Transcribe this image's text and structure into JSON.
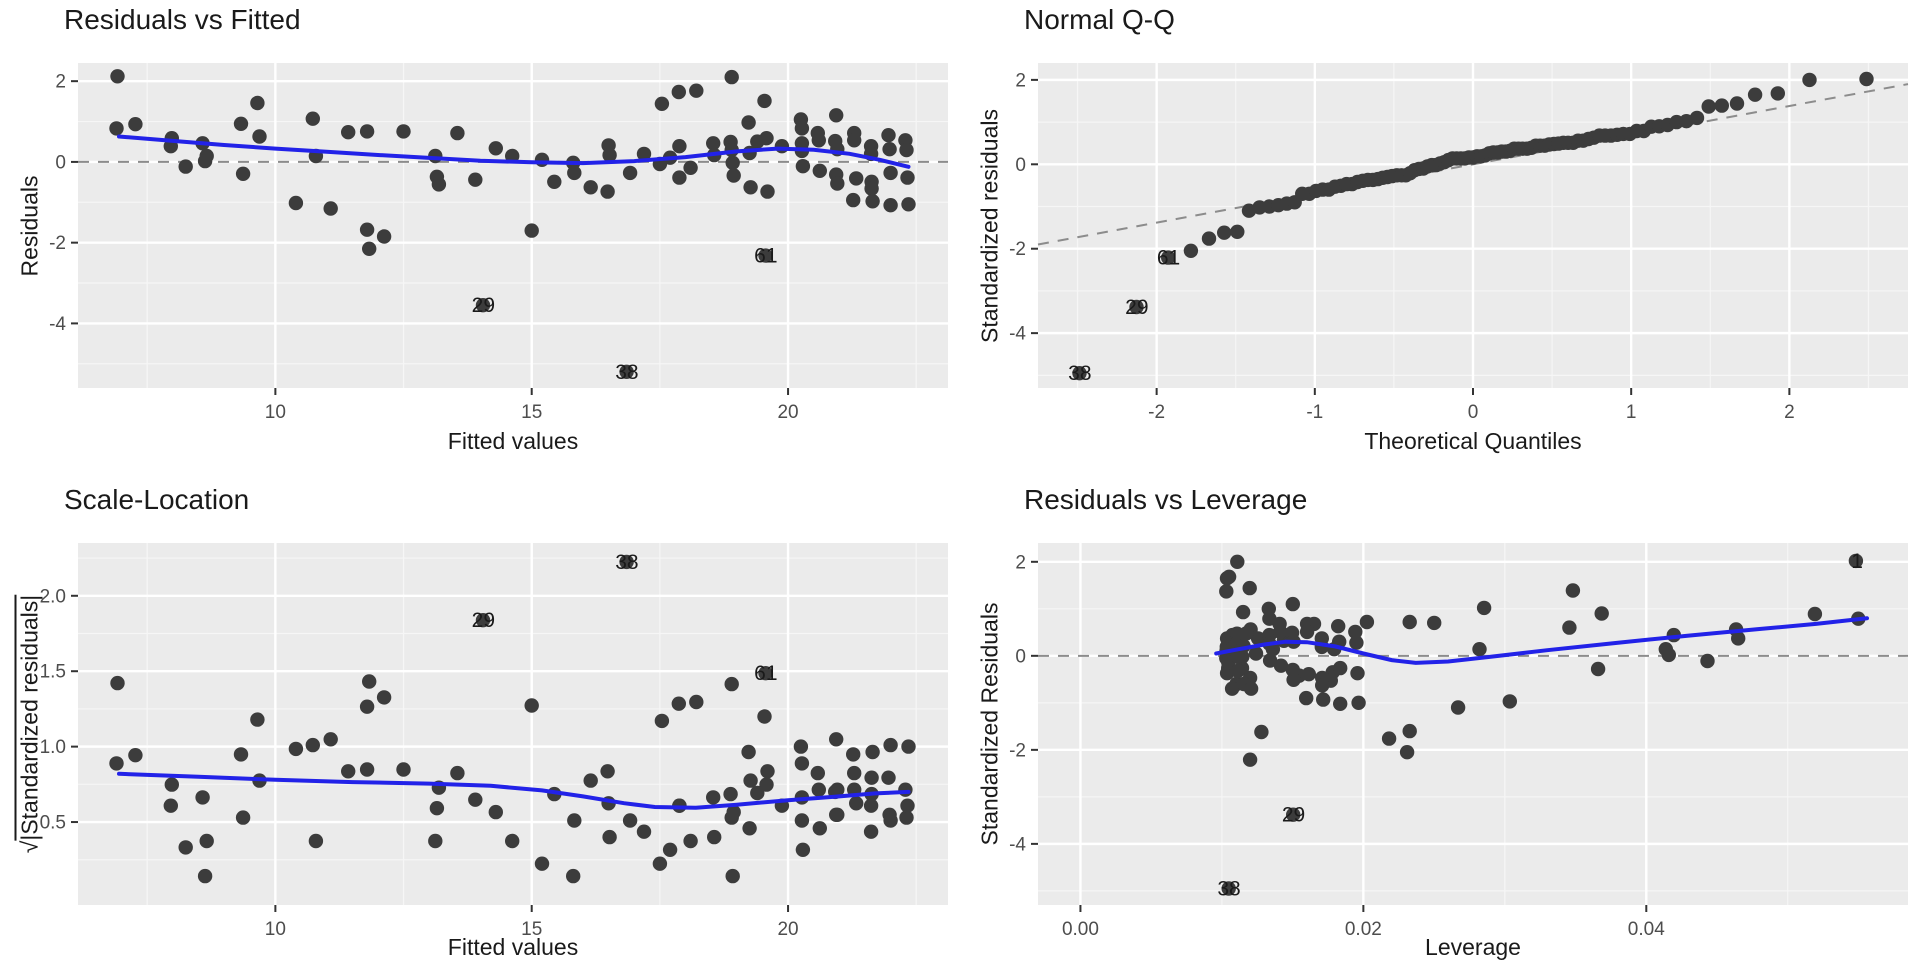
{
  "colors": {
    "panel_bg": "#EBEBEB",
    "grid_major": "#FFFFFF",
    "grid_minor": "#F6F6F6",
    "point": "#3C3C3C",
    "smooth_line": "#2222E8",
    "dashed_line": "#8C8C8C",
    "tick_text": "#4D4D4D",
    "tick_mark": "#333333",
    "text": "#1A1A1A"
  },
  "chart_data": {
    "type": "scatter",
    "figure_kind": "linear-model-diagnostics-2x2",
    "model": {
      "sigma": 1.05,
      "fitted_mean": 17.5,
      "sxx": 2515,
      "observations": [
        [
          6.92,
          2.02,
          "1"
        ],
        [
          6.9,
          0.79
        ],
        [
          7.27,
          0.89
        ],
        [
          7.98,
          0.56
        ],
        [
          7.96,
          0.37
        ],
        [
          8.25,
          -0.11
        ],
        [
          8.58,
          0.44
        ],
        [
          8.66,
          0.14
        ],
        [
          8.63,
          0.02
        ],
        [
          9.33,
          0.9
        ],
        [
          9.37,
          -0.28
        ],
        [
          9.65,
          1.39
        ],
        [
          9.69,
          0.6
        ],
        [
          10.4,
          -0.97
        ],
        [
          10.73,
          1.02
        ],
        [
          10.79,
          0.14
        ],
        [
          11.08,
          -1.1
        ],
        [
          11.42,
          0.7
        ],
        [
          11.79,
          -1.6
        ],
        [
          11.83,
          -2.05
        ],
        [
          12.12,
          -1.76
        ],
        [
          11.79,
          0.72
        ],
        [
          12.5,
          0.72
        ],
        [
          13.12,
          0.14
        ],
        [
          13.15,
          -0.35
        ],
        [
          13.19,
          -0.53
        ],
        [
          13.55,
          0.68
        ],
        [
          13.9,
          -0.42
        ],
        [
          14.05,
          -3.38,
          "29"
        ],
        [
          14.3,
          0.32
        ],
        [
          14.62,
          0.14
        ],
        [
          15.0,
          -1.62
        ],
        [
          15.2,
          0.05
        ],
        [
          15.44,
          -0.47
        ],
        [
          15.81,
          -0.02
        ],
        [
          15.83,
          -0.26
        ],
        [
          16.15,
          -0.6
        ],
        [
          16.85,
          -4.95,
          "38"
        ],
        [
          16.48,
          -0.7
        ],
        [
          16.5,
          0.39
        ],
        [
          16.52,
          0.16
        ],
        [
          16.92,
          -0.26
        ],
        [
          17.19,
          0.19
        ],
        [
          17.54,
          1.37
        ],
        [
          17.5,
          -0.05
        ],
        [
          17.7,
          0.1
        ],
        [
          17.87,
          1.65
        ],
        [
          17.88,
          0.37
        ],
        [
          17.88,
          -0.37
        ],
        [
          18.1,
          -0.14
        ],
        [
          18.21,
          1.68
        ],
        [
          18.54,
          0.44
        ],
        [
          18.56,
          0.16
        ],
        [
          18.9,
          2.0
        ],
        [
          18.88,
          0.47
        ],
        [
          18.9,
          0.28
        ],
        [
          18.92,
          -0.02
        ],
        [
          18.94,
          -0.32
        ],
        [
          19.23,
          0.93
        ],
        [
          19.25,
          0.21
        ],
        [
          19.56,
          -2.21,
          "61"
        ],
        [
          19.27,
          -0.6
        ],
        [
          19.54,
          1.44
        ],
        [
          19.58,
          0.56
        ],
        [
          19.6,
          -0.7
        ],
        [
          19.88,
          0.37
        ],
        [
          20.25,
          1.0
        ],
        [
          20.27,
          0.79
        ],
        [
          20.27,
          0.44
        ],
        [
          20.27,
          0.26
        ],
        [
          20.29,
          -0.1
        ],
        [
          20.58,
          0.68
        ],
        [
          20.6,
          0.51
        ],
        [
          20.62,
          -0.21
        ],
        [
          20.94,
          1.1
        ],
        [
          20.92,
          0.49
        ],
        [
          20.96,
          0.3
        ],
        [
          20.94,
          -0.3
        ],
        [
          20.96,
          -0.51
        ],
        [
          21.27,
          -0.9
        ],
        [
          21.29,
          0.68
        ],
        [
          21.29,
          0.51
        ],
        [
          21.33,
          -0.39
        ],
        [
          21.62,
          0.37
        ],
        [
          21.62,
          0.19
        ],
        [
          21.63,
          -0.47
        ],
        [
          21.63,
          -0.63
        ],
        [
          21.65,
          -0.93
        ],
        [
          21.96,
          0.63
        ],
        [
          21.98,
          0.3
        ],
        [
          22.0,
          -0.26
        ],
        [
          22.0,
          -1.02
        ],
        [
          22.29,
          0.51
        ],
        [
          22.31,
          0.28
        ],
        [
          22.33,
          -0.37
        ],
        [
          22.35,
          -1.0
        ],
        [
          19.4,
          0.48
        ]
      ]
    },
    "panels": [
      {
        "kind": "resid_fitted",
        "title": "Residuals vs Fitted",
        "xlabel": "Fitted values",
        "ylabel": "Residuals",
        "xdomain": [
          6.15,
          23.12
        ],
        "ydomain": [
          -5.6,
          2.45
        ],
        "xticks": [
          {
            "v": 10,
            "label": "10"
          },
          {
            "v": 15,
            "label": "15"
          },
          {
            "v": 20,
            "label": "20"
          }
        ],
        "yticks": [
          {
            "v": 2,
            "label": "2"
          },
          {
            "v": 0,
            "label": "0"
          },
          {
            "v": -2,
            "label": "-2"
          },
          {
            "v": -4,
            "label": "-4"
          }
        ],
        "xminor": [
          7.5,
          12.5,
          17.5,
          22.5
        ],
        "yminor": [
          1,
          -1,
          -3,
          -5
        ],
        "ref_h": 0,
        "smooth": [
          [
            6.95,
            0.63
          ],
          [
            8,
            0.52
          ],
          [
            9,
            0.42
          ],
          [
            10,
            0.33
          ],
          [
            11,
            0.25
          ],
          [
            12,
            0.17
          ],
          [
            13,
            0.1
          ],
          [
            14,
            0.03
          ],
          [
            15,
            -0.01
          ],
          [
            16,
            -0.03
          ],
          [
            17,
            0.02
          ],
          [
            18,
            0.12
          ],
          [
            19,
            0.26
          ],
          [
            19.8,
            0.33
          ],
          [
            20.5,
            0.3
          ],
          [
            21.2,
            0.2
          ],
          [
            21.8,
            0.05
          ],
          [
            22.35,
            -0.12
          ]
        ],
        "labeled": [
          "29",
          "38",
          "61"
        ]
      },
      {
        "kind": "qq",
        "title": "Normal Q-Q",
        "xlabel": "Theoretical Quantiles",
        "ylabel": "Standardized residuals",
        "xdomain": [
          -2.75,
          2.75
        ],
        "ydomain": [
          -5.3,
          2.4
        ],
        "xticks": [
          {
            "v": -2,
            "label": "-2"
          },
          {
            "v": -1,
            "label": "-1"
          },
          {
            "v": 0,
            "label": "0"
          },
          {
            "v": 1,
            "label": "1"
          },
          {
            "v": 2,
            "label": "2"
          }
        ],
        "yticks": [
          {
            "v": 2,
            "label": "2"
          },
          {
            "v": 0,
            "label": "0"
          },
          {
            "v": -2,
            "label": "-2"
          },
          {
            "v": -4,
            "label": "-4"
          }
        ],
        "xminor": [
          -2.5,
          -1.5,
          -0.5,
          0.5,
          1.5,
          2.5
        ],
        "yminor": [
          1,
          -1,
          -3,
          -5
        ],
        "ref_seg": [
          [
            -2.75,
            -1.9
          ],
          [
            2.75,
            1.9
          ]
        ],
        "smooth": null,
        "labeled": [
          "29",
          "38",
          "61"
        ]
      },
      {
        "kind": "scale_location",
        "title": "Scale-Location",
        "xlabel": "Fitted values",
        "ylabel": "√|Standardized residuals|",
        "xdomain": [
          6.15,
          23.12
        ],
        "ydomain": [
          -0.05,
          2.35
        ],
        "xticks": [
          {
            "v": 10,
            "label": "10"
          },
          {
            "v": 15,
            "label": "15"
          },
          {
            "v": 20,
            "label": "20"
          }
        ],
        "yticks": [
          {
            "v": 0.5,
            "label": "0.5"
          },
          {
            "v": 1.0,
            "label": "1.0"
          },
          {
            "v": 1.5,
            "label": "1.5"
          },
          {
            "v": 2.0,
            "label": "2.0"
          }
        ],
        "xminor": [
          7.5,
          12.5,
          17.5,
          22.5
        ],
        "yminor": [
          0.25,
          0.75,
          1.25,
          1.75,
          2.25
        ],
        "smooth": [
          [
            6.95,
            0.82
          ],
          [
            8.5,
            0.8
          ],
          [
            10,
            0.78
          ],
          [
            11.5,
            0.765
          ],
          [
            13,
            0.755
          ],
          [
            14.2,
            0.74
          ],
          [
            15.2,
            0.71
          ],
          [
            16,
            0.67
          ],
          [
            16.8,
            0.625
          ],
          [
            17.4,
            0.6
          ],
          [
            18.2,
            0.595
          ],
          [
            19,
            0.615
          ],
          [
            20,
            0.645
          ],
          [
            21,
            0.67
          ],
          [
            21.7,
            0.69
          ],
          [
            22.35,
            0.7
          ]
        ],
        "labeled": [
          "29",
          "38",
          "61"
        ]
      },
      {
        "kind": "resid_leverage",
        "title": "Residuals vs Leverage",
        "xlabel": "Leverage",
        "ylabel": "Standardized Residuals",
        "xdomain": [
          -0.003,
          0.0585
        ],
        "ydomain": [
          -5.3,
          2.4
        ],
        "xticks": [
          {
            "v": 0,
            "label": "0.00"
          },
          {
            "v": 0.02,
            "label": "0.02"
          },
          {
            "v": 0.04,
            "label": "0.04"
          }
        ],
        "yticks": [
          {
            "v": 2,
            "label": "2"
          },
          {
            "v": 0,
            "label": "0"
          },
          {
            "v": -2,
            "label": "-2"
          },
          {
            "v": -4,
            "label": "-4"
          }
        ],
        "xminor": [
          0.01,
          0.03,
          0.05
        ],
        "yminor": [
          1,
          -1,
          -3,
          -5
        ],
        "ref_h": 0,
        "smooth": [
          [
            0.0096,
            0.05
          ],
          [
            0.011,
            0.13
          ],
          [
            0.013,
            0.24
          ],
          [
            0.0145,
            0.3
          ],
          [
            0.016,
            0.29
          ],
          [
            0.018,
            0.2
          ],
          [
            0.02,
            0.05
          ],
          [
            0.022,
            -0.09
          ],
          [
            0.0237,
            -0.15
          ],
          [
            0.026,
            -0.12
          ],
          [
            0.029,
            -0.02
          ],
          [
            0.033,
            0.12
          ],
          [
            0.038,
            0.28
          ],
          [
            0.043,
            0.43
          ],
          [
            0.048,
            0.57
          ],
          [
            0.052,
            0.68
          ],
          [
            0.0556,
            0.8
          ]
        ],
        "labeled": [
          "29",
          "38",
          "1"
        ]
      }
    ]
  }
}
